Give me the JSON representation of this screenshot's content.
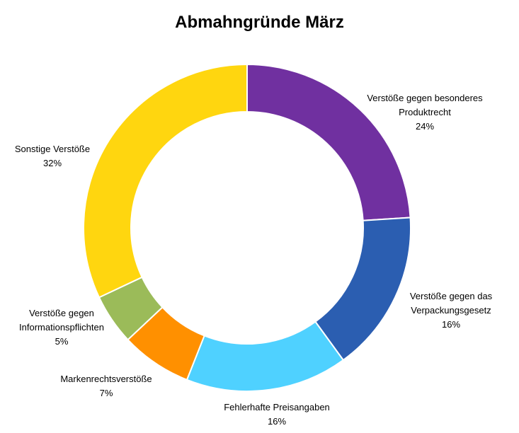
{
  "chart_data": {
    "type": "pie",
    "variant": "donut",
    "title": "Abmahngründe März",
    "legend": "none",
    "slices": [
      {
        "label": [
          "Verstöße gegen besonderes",
          "Produktrecht"
        ],
        "value_label": "24%",
        "value": 24,
        "color": "#7030A0"
      },
      {
        "label": [
          "Verstöße gegen das",
          "Verpackungsgesetz"
        ],
        "value_label": "16%",
        "value": 16,
        "color": "#2B5EB1"
      },
      {
        "label": [
          "Fehlerhafte Preisangaben"
        ],
        "value_label": "16%",
        "value": 16,
        "color": "#4FD1FF"
      },
      {
        "label": [
          "Markenrechtsverstöße"
        ],
        "value_label": "7%",
        "value": 7,
        "color": "#FF9000"
      },
      {
        "label": [
          "Verstöße gegen",
          "Informationspflichten"
        ],
        "value_label": "5%",
        "value": 5,
        "color": "#9BBB59"
      },
      {
        "label": [
          "Sonstige Verstöße"
        ],
        "value_label": "32%",
        "value": 32,
        "color": "#FFD60F"
      }
    ]
  }
}
